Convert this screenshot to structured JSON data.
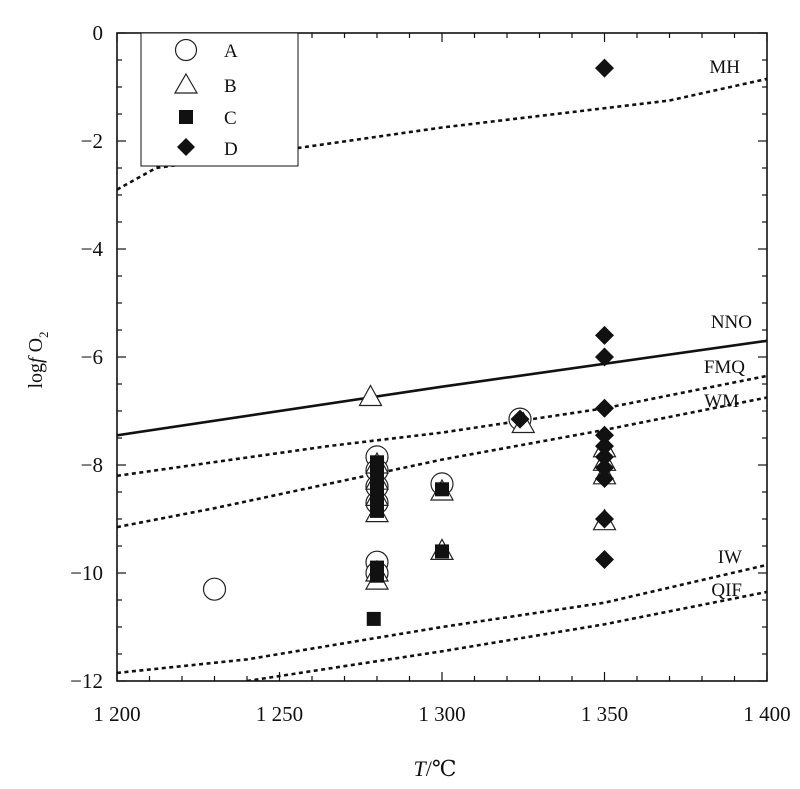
{
  "chart_data": {
    "type": "scatter",
    "xlim": [
      1200,
      1400
    ],
    "ylim": [
      -12,
      0
    ],
    "xticks": [
      1200,
      1250,
      1300,
      1350,
      1400
    ],
    "yticks": [
      0,
      -2,
      -4,
      -6,
      -8,
      -10,
      -12
    ],
    "xtick_labels": [
      "1 200",
      "1 250",
      "1 300",
      "1 350",
      "1 400"
    ],
    "ytick_labels": [
      "0",
      "−2",
      "−4",
      "−6",
      "−8",
      "−10",
      "−12"
    ],
    "xlabel_italic": "T",
    "xlabel_rest": "/℃",
    "ylabel_pre": "log",
    "ylabel_f": "f",
    "ylabel_o": " O",
    "ylabel_sub": "2",
    "grid": false,
    "legend_position": "top-left",
    "series": [
      {
        "name": "A",
        "marker": "circle",
        "points": [
          [
            1230,
            -10.3
          ],
          [
            1280,
            -7.85
          ],
          [
            1280,
            -8.1
          ],
          [
            1280,
            -8.4
          ],
          [
            1280,
            -8.7
          ],
          [
            1280,
            -9.8
          ],
          [
            1280,
            -10.0
          ],
          [
            1300,
            -8.35
          ],
          [
            1324,
            -7.15
          ]
        ]
      },
      {
        "name": "B",
        "marker": "triangle",
        "points": [
          [
            1278,
            -6.75
          ],
          [
            1280,
            -8.0
          ],
          [
            1280,
            -8.3
          ],
          [
            1280,
            -8.6
          ],
          [
            1280,
            -8.9
          ],
          [
            1280,
            -10.0
          ],
          [
            1280,
            -10.15
          ],
          [
            1300,
            -8.5
          ],
          [
            1300,
            -9.6
          ],
          [
            1325,
            -7.25
          ],
          [
            1350,
            -7.7
          ],
          [
            1350,
            -7.95
          ],
          [
            1350,
            -8.2
          ],
          [
            1350,
            -9.05
          ]
        ]
      },
      {
        "name": "C",
        "marker": "square",
        "points": [
          [
            1280,
            -7.95
          ],
          [
            1280,
            -8.1
          ],
          [
            1280,
            -8.25
          ],
          [
            1280,
            -8.4
          ],
          [
            1280,
            -8.55
          ],
          [
            1280,
            -8.7
          ],
          [
            1280,
            -8.85
          ],
          [
            1280,
            -9.9
          ],
          [
            1280,
            -10.05
          ],
          [
            1279,
            -10.85
          ],
          [
            1300,
            -8.45
          ],
          [
            1300,
            -9.6
          ]
        ]
      },
      {
        "name": "D",
        "marker": "diamond",
        "points": [
          [
            1350,
            -0.65
          ],
          [
            1350,
            -5.6
          ],
          [
            1350,
            -6.0
          ],
          [
            1350,
            -6.95
          ],
          [
            1350,
            -7.45
          ],
          [
            1350,
            -7.65
          ],
          [
            1350,
            -7.85
          ],
          [
            1350,
            -8.05
          ],
          [
            1350,
            -8.25
          ],
          [
            1350,
            -9.0
          ],
          [
            1350,
            -9.75
          ],
          [
            1324,
            -7.15
          ]
        ]
      }
    ],
    "buffers": [
      {
        "name": "MH",
        "style": "dotted",
        "points": [
          [
            1200,
            -2.9
          ],
          [
            1212,
            -2.5
          ],
          [
            1230,
            -2.35
          ],
          [
            1300,
            -1.75
          ],
          [
            1370,
            -1.25
          ],
          [
            1400,
            -0.85
          ]
        ]
      },
      {
        "name": "NNO",
        "style": "solid",
        "points": [
          [
            1200,
            -7.45
          ],
          [
            1300,
            -6.55
          ],
          [
            1400,
            -5.7
          ]
        ]
      },
      {
        "name": "FMQ",
        "style": "dotted",
        "points": [
          [
            1200,
            -8.2
          ],
          [
            1265,
            -7.65
          ],
          [
            1300,
            -7.4
          ],
          [
            1350,
            -6.95
          ],
          [
            1400,
            -6.35
          ]
        ]
      },
      {
        "name": "WM",
        "style": "dotted",
        "points": [
          [
            1200,
            -9.15
          ],
          [
            1230,
            -8.8
          ],
          [
            1300,
            -7.9
          ],
          [
            1350,
            -7.35
          ],
          [
            1400,
            -6.75
          ]
        ]
      },
      {
        "name": "IW",
        "style": "dotted",
        "points": [
          [
            1200,
            -11.85
          ],
          [
            1240,
            -11.6
          ],
          [
            1300,
            -11.0
          ],
          [
            1350,
            -10.55
          ],
          [
            1400,
            -9.85
          ]
        ]
      },
      {
        "name": "QIF",
        "style": "dotted",
        "points": [
          [
            1240,
            -12.0
          ],
          [
            1300,
            -11.45
          ],
          [
            1350,
            -10.95
          ],
          [
            1400,
            -10.35
          ]
        ]
      }
    ],
    "buffer_labels": [
      "MH",
      "NNO",
      "FMQ",
      "WM",
      "IW",
      "QIF"
    ],
    "legend": [
      "A",
      "B",
      "C",
      "D"
    ]
  }
}
